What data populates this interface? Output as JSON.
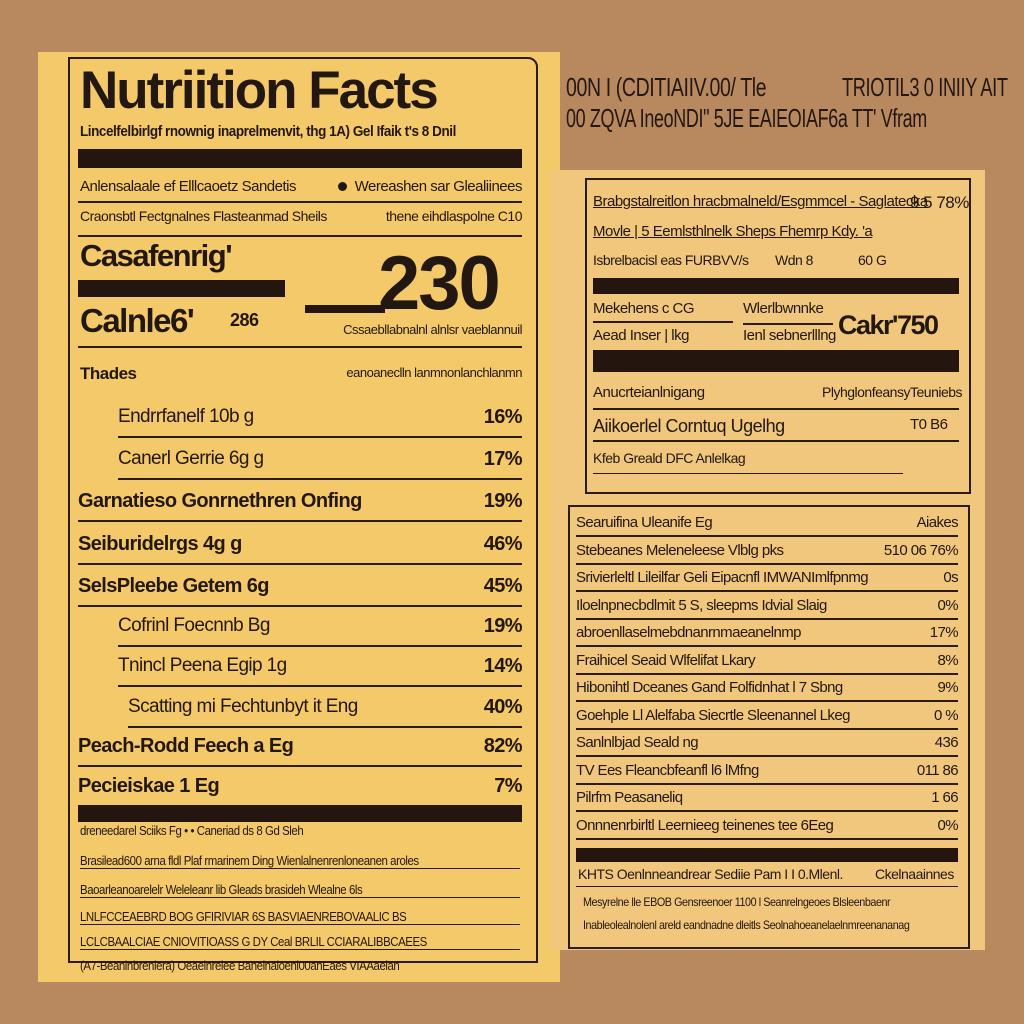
{
  "colors": {
    "background": "#b8885e",
    "left_label": "#f4c96a",
    "right_label": "#f0c77c",
    "ink": "#24160f"
  },
  "left": {
    "title": "Nutriition Facts",
    "subtitle": "Lincelfelbirlgf rnownig inaprelmenvit, thg 1A) Gel Ifaik t's 8 Dnil",
    "line1_left": "Anlensalaale ef Elllcaoetz Sandetis",
    "line1_right": "Wereashen sar Glealiinees",
    "line2_left": "Craonsbtl Fectgnalnes Flasteanmad Sheils",
    "line2_right": "thene eihdlaspolne C10",
    "big_label": "Casafenrig'",
    "big_number": "230",
    "calorie_label": "Calnle6'",
    "calorie_value": "286",
    "calorie_note": "Cssaebllabnalnl alnlsr vaeblannuil",
    "section_label": "Thades",
    "section_right": "eanoaneclln lanmnonlanchlanmn",
    "rows": [
      {
        "label": "Endrrfanelf 10b g",
        "value": "16%",
        "bold": false,
        "indent": 40
      },
      {
        "label": "Canerl Gerrie 6g g",
        "value": "17%",
        "bold": false,
        "indent": 40
      },
      {
        "label": "Garnatieso Gonrnethren Onfing",
        "value": "19%",
        "bold": true,
        "indent": 0
      },
      {
        "label": "Seiburidelrgs 4g g",
        "value": "46%",
        "bold": true,
        "indent": 0
      },
      {
        "label": "SelsPleebe Getem 6g",
        "value": "45%",
        "bold": true,
        "indent": 0
      },
      {
        "label": "Cofrinl Foecnnb Bg",
        "value": "19%",
        "bold": false,
        "indent": 40
      },
      {
        "label": "Tnincl Peena Egip 1g",
        "value": "14%",
        "bold": false,
        "indent": 40
      },
      {
        "label": "Scatting mi Fechtunbyt it Eng",
        "value": "40%",
        "bold": false,
        "indent": 50
      },
      {
        "label": "Peach-Rodd Feech a Eg",
        "value": "82%",
        "bold": true,
        "indent": 0
      },
      {
        "label": "Pecieiskae 1 Eg",
        "value": "7%",
        "bold": true,
        "indent": 0
      }
    ],
    "footnotes": [
      "dreneedarel Sciiks Fg  •  •  Caneriad ds 8 Gd Sleh",
      "Brasilead600 arna fldl Plaf rmarinem Ding Wienlalnenrenloneanen aroles",
      "Baoarleanoarelelr Weleleanr lib Gleads brasideh Wlealne 6ls",
      "LNLFCCEAEBRD BOG GFIRIVIAR 6S BASVIAENREBOVAALIC BS",
      "LCLCBAALCIAE CNIOVITIOASS G DY Ceal BRLIL CCIARALIBBCAEES",
      "(A7-Beanlnbrenlera) Oeaelnrelee Banelnaloenl00anEaes VIAAaelan"
    ]
  },
  "top_right": {
    "line1_left": "00N I (CDITIAIIV.00/ Tle",
    "line1_right": "TRIOTIL3 0 INIIY AIT",
    "line2": "00 ZQVA IneoNDI\" 5JE EAIEOIAF6a TT' Vfram"
  },
  "right_upper": {
    "row1_left": "Brabgstalreitlon hracbmalneld/Esgmmcel - Saglatecka",
    "row1_right": "9 5 78%",
    "row2_left": "Movle | 5 Eemlsthlnelk Sheps Fhemrp Kdy. 'a",
    "row3_left": "Isbrelbacisl eas FURBVV/s",
    "row3_mid": "Wdn 8",
    "row3_right": "60 G",
    "col1_a": "Mekehens c CG",
    "col1_b": "Aead Inser  |  lkg",
    "col2_a": "Wlerlbwnnke",
    "col2_b": "Ienl sebnerlllng",
    "big_value": "Cakr'750",
    "row4_left": "Anucrteianlnigang",
    "row4_mid": "Plyhglonfeansy",
    "row4_right": "Teuniebs",
    "row5_left": "Aiikoerlel Corntuq Ugelhg",
    "row5_right": "T0 B6",
    "row6_left": "Kfeb Greald DFC Anlelkag"
  },
  "right_lower": {
    "rows": [
      {
        "label": "Searuifina Uleanife Eg",
        "value": "Aiakes",
        "bold": false
      },
      {
        "label": "Stebeanes Meleneleese Vlblg pks",
        "value": "510 06 76%",
        "bold": false
      },
      {
        "label": "Srivierleltl Lileilfar Geli Eipacnfl IMWANImlfpnmg",
        "value": "0s",
        "bold": false
      },
      {
        "label": "  Iloelnpnecbdlmit 5 S, sleepms Idvial Slaig",
        "value": "0%",
        "bold": false
      },
      {
        "label": "  abroenllaselmebdnanrnmaeanelnmp",
        "value": "17%",
        "bold": false
      },
      {
        "label": "Fraihicel  Seaid Wlfelifat Lkary",
        "value": "8%",
        "bold": false
      },
      {
        "label": "Hibonihtl Dceanes Gand Folfidnhat l 7 Sbng",
        "value": "9%",
        "bold": false
      },
      {
        "label": "Goehple Ll Alelfaba Siecrtle Sleenannel Lkeg",
        "value": "0 %",
        "bold": false
      },
      {
        "label": "Sanlnlbjad  Seald ng",
        "value": "436",
        "bold": false
      },
      {
        "label": "  TV Ees Fleancbfeanfl l6 lMfng",
        "value": "011 86",
        "bold": false
      },
      {
        "label": "Pilrfm Peasaneliq",
        "value": "1 66",
        "bold": false
      },
      {
        "label": "Onnnenrbirltl Leernieeg teinenes tee 6Eeg",
        "value": "0%",
        "bold": false
      }
    ],
    "footer1_left": "KHTS Oenlnneandrear Sediie Pam   I I 0.Mlenl.",
    "footer1_right": "Ckelnaainnes",
    "footer2": "Mesyrelne lle EBOB Gensreenoer 1100 l Seanrelngeoes Blsleenbaenr",
    "footer3": "Inableolealnolenl areld eandnadne dleitls Seolnahoeanelaelnmreenananag"
  }
}
